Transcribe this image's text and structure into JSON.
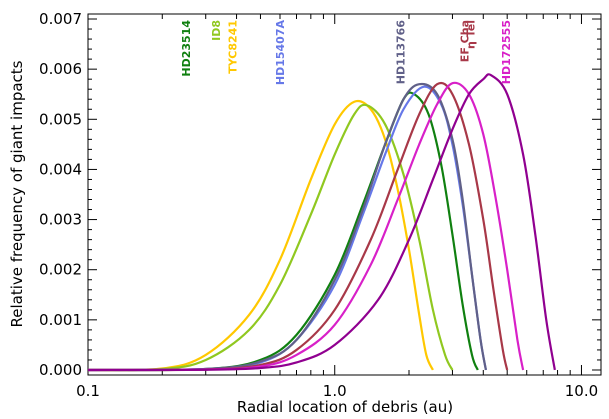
{
  "chart_data": {
    "type": "line",
    "title": "",
    "xlabel": "Radial location of debris (au)",
    "ylabel": "Relative frequency of giant impacts",
    "x_scale": "log",
    "xlim": [
      0.1,
      12
    ],
    "ylim": [
      -0.0001,
      0.0071
    ],
    "x_ticks": [
      {
        "value": 0.1,
        "label": "0.1"
      },
      {
        "value": 1.0,
        "label": "1.0"
      },
      {
        "value": 10.0,
        "label": "10.0"
      }
    ],
    "y_ticks": [
      {
        "value": 0.0,
        "label": "0.000"
      },
      {
        "value": 0.001,
        "label": "0.001"
      },
      {
        "value": 0.002,
        "label": "0.002"
      },
      {
        "value": 0.003,
        "label": "0.003"
      },
      {
        "value": 0.004,
        "label": "0.004"
      },
      {
        "value": 0.005,
        "label": "0.005"
      },
      {
        "value": 0.006,
        "label": "0.006"
      },
      {
        "value": 0.007,
        "label": "0.007"
      }
    ],
    "grid": false,
    "legend": "none",
    "series": [
      {
        "color": "#FFC800",
        "x": [
          0.1,
          0.2,
          0.3,
          0.45,
          0.6,
          0.8,
          1.0,
          1.2,
          1.4,
          1.6,
          1.8,
          2.0,
          2.2,
          2.35,
          2.5
        ],
        "y": [
          0.0,
          3e-05,
          0.0003,
          0.0011,
          0.0022,
          0.0038,
          0.0049,
          0.00535,
          0.0052,
          0.0046,
          0.0036,
          0.0024,
          0.0011,
          0.0003,
          0.0
        ]
      },
      {
        "color": "#90C820",
        "x": [
          0.1,
          0.2,
          0.3,
          0.45,
          0.6,
          0.8,
          1.0,
          1.2,
          1.35,
          1.6,
          1.9,
          2.2,
          2.5,
          2.8,
          3.0
        ],
        "y": [
          0.0,
          2e-05,
          0.0002,
          0.0008,
          0.0017,
          0.0031,
          0.0043,
          0.0051,
          0.00528,
          0.0049,
          0.0039,
          0.0026,
          0.0012,
          0.0003,
          0.0
        ]
      },
      {
        "color": "#108010",
        "x": [
          0.1,
          0.3,
          0.5,
          0.7,
          1.0,
          1.3,
          1.6,
          1.9,
          2.1,
          2.4,
          2.7,
          3.0,
          3.3,
          3.6,
          3.8
        ],
        "y": [
          0.0,
          2e-05,
          0.0002,
          0.0007,
          0.0019,
          0.0033,
          0.0045,
          0.0054,
          0.0055,
          0.0051,
          0.0041,
          0.0027,
          0.0013,
          0.0003,
          0.0
        ]
      },
      {
        "color": "#6678E8",
        "x": [
          0.1,
          0.3,
          0.5,
          0.7,
          1.0,
          1.3,
          1.6,
          1.9,
          2.3,
          2.7,
          3.0,
          3.3,
          3.6,
          3.9,
          4.1
        ],
        "y": [
          0.0,
          2e-05,
          0.00015,
          0.0006,
          0.0017,
          0.0031,
          0.0043,
          0.0052,
          0.00565,
          0.0053,
          0.0045,
          0.0033,
          0.0019,
          0.0006,
          0.0
        ]
      },
      {
        "color": "#606088",
        "x": [
          0.1,
          0.3,
          0.5,
          0.7,
          1.0,
          1.3,
          1.6,
          1.9,
          2.2,
          2.6,
          3.0,
          3.3,
          3.6,
          3.9,
          4.1
        ],
        "y": [
          0.0,
          2e-05,
          0.00017,
          0.0006,
          0.0018,
          0.0032,
          0.0045,
          0.0054,
          0.0057,
          0.0055,
          0.0046,
          0.0034,
          0.0019,
          0.0006,
          0.0
        ]
      },
      {
        "color": "#A83848",
        "x": [
          0.1,
          0.3,
          0.5,
          0.7,
          1.0,
          1.4,
          1.8,
          2.2,
          2.6,
          3.0,
          3.5,
          4.0,
          4.4,
          4.8,
          5.0
        ],
        "y": [
          0.0,
          1e-05,
          0.0001,
          0.0004,
          0.0012,
          0.0026,
          0.004,
          0.0051,
          0.0057,
          0.0055,
          0.0045,
          0.003,
          0.0016,
          0.0004,
          0.0
        ]
      },
      {
        "color": "#D820C8",
        "x": [
          0.1,
          0.3,
          0.5,
          0.7,
          1.0,
          1.4,
          1.8,
          2.2,
          2.6,
          3.0,
          3.5,
          4.0,
          4.5,
          5.0,
          5.5,
          5.8
        ],
        "y": [
          0.0,
          1e-05,
          7e-05,
          0.0003,
          0.0009,
          0.0021,
          0.0034,
          0.0045,
          0.0053,
          0.00572,
          0.0055,
          0.0047,
          0.0034,
          0.002,
          0.0006,
          0.0
        ]
      },
      {
        "color": "#900090",
        "x": [
          0.1,
          0.3,
          0.5,
          0.7,
          1.0,
          1.5,
          2.0,
          2.5,
          3.0,
          3.5,
          4.0,
          4.3,
          5.0,
          5.8,
          6.5,
          7.2,
          7.8
        ],
        "y": [
          0.0,
          5e-06,
          4e-05,
          0.00015,
          0.0005,
          0.0014,
          0.0026,
          0.0038,
          0.0048,
          0.0055,
          0.0058,
          0.00588,
          0.0055,
          0.0043,
          0.0027,
          0.001,
          0.0
        ]
      }
    ],
    "annotations": [
      {
        "text": "HD23514",
        "x": 0.25,
        "color": "#108010"
      },
      {
        "text": "ID8",
        "x": 0.33,
        "color": "#90C820"
      },
      {
        "text": "TYC8241",
        "x": 0.385,
        "color": "#FFC800"
      },
      {
        "text": "HD15407A",
        "x": 0.6,
        "color": "#6678E8"
      },
      {
        "text": "HD113766",
        "x": 1.85,
        "color": "#606088"
      },
      {
        "text": "η Tel",
        "x": 3.55,
        "color": "#A83848"
      },
      {
        "text": "EF Cha",
        "x": 3.35,
        "color": "#A83848"
      },
      {
        "text": "HD172555",
        "x": 4.95,
        "color": "#D820C8"
      }
    ]
  }
}
